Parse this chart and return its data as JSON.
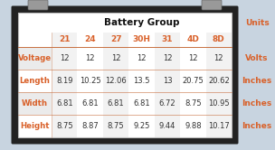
{
  "title": "Battery Group",
  "units_label": "Units",
  "col_headers": [
    "21",
    "24",
    "27",
    "30H",
    "31",
    "4D",
    "8D"
  ],
  "row_headers": [
    "Voltage",
    "Length",
    "Width",
    "Height"
  ],
  "row_units": [
    "Volts",
    "Inches",
    "Inches",
    "Inches"
  ],
  "table_data": [
    [
      "12",
      "12",
      "12",
      "12",
      "12",
      "12",
      "12"
    ],
    [
      "8.19",
      "10.25",
      "12.06",
      "13.5",
      "13",
      "20.75",
      "20.62"
    ],
    [
      "6.81",
      "6.81",
      "6.81",
      "6.81",
      "6.72",
      "8.75",
      "10.95"
    ],
    [
      "8.75",
      "8.87",
      "8.75",
      "9.25",
      "9.44",
      "9.88",
      "10.17"
    ]
  ],
  "header_color": "#d9612a",
  "row_header_color": "#d9612a",
  "units_color": "#d9612a",
  "alt_row_bg": [
    "#ebebeb",
    "#ffffff",
    "#ebebeb",
    "#ffffff"
  ],
  "cell_text_color": "#333333",
  "bg_color": "#c8d4e0",
  "battery_body_color": "#222222",
  "battery_terminal_color": "#999999",
  "divider_color": "#c87040",
  "col_header_bg_odd": "#f2f2f2",
  "col_header_bg_even": "#ffffff",
  "title_fontsize": 7.5,
  "header_fontsize": 6.5,
  "cell_fontsize": 6.0,
  "units_fontsize": 6.5,
  "figsize": [
    3.04,
    1.66
  ],
  "dpi": 100
}
